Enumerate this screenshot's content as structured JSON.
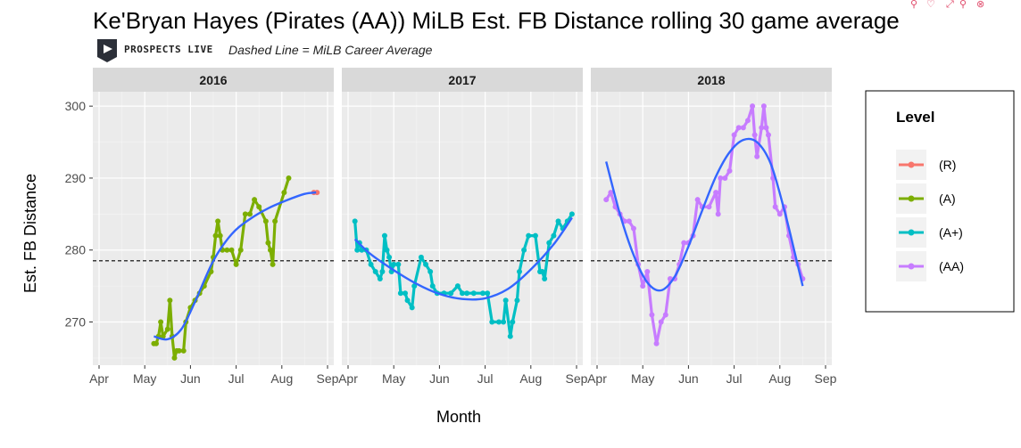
{
  "toolbar": {
    "icons": [
      "search-pin-icon",
      "heart-pin-icon",
      "expand-icon",
      "search-icon",
      "close-search-icon"
    ],
    "color": "#e04a6a"
  },
  "header": {
    "brand_label": "PROSPECTS LIVE",
    "note": "Dashed Line = MiLB Career Average"
  },
  "chart_data": {
    "type": "line",
    "title": "Ke'Bryan Hayes (Pirates (AA)) MiLB Est. FB Distance rolling 30 game average",
    "xlabel": "Month",
    "ylabel": "Est. FB Distance",
    "ylim": [
      264,
      302
    ],
    "yticks": [
      270,
      280,
      290,
      300
    ],
    "xticks": [
      "Apr",
      "May",
      "Jun",
      "Jul",
      "Aug",
      "Sep"
    ],
    "grid": true,
    "career_average": 278.5,
    "legend": {
      "title": "Level",
      "placement": "right",
      "entries": [
        {
          "label": "(R)",
          "color": "#f8766d"
        },
        {
          "label": "(A)",
          "color": "#7cae00"
        },
        {
          "label": "(A+)",
          "color": "#00bfc4"
        },
        {
          "label": "(AA)",
          "color": "#c77cff"
        }
      ]
    },
    "smooth_color": "#3366ff",
    "panels": [
      {
        "label": "2016",
        "series": [
          {
            "name": "(R)",
            "color": "#f8766d",
            "points": [
              [
                4.7,
                288
              ],
              [
                4.77,
                288
              ]
            ]
          },
          {
            "name": "(A)",
            "color": "#7cae00",
            "points": [
              [
                1.2,
                267
              ],
              [
                1.25,
                267
              ],
              [
                1.3,
                268
              ],
              [
                1.35,
                270
              ],
              [
                1.4,
                268
              ],
              [
                1.5,
                269
              ],
              [
                1.55,
                273
              ],
              [
                1.6,
                268
              ],
              [
                1.65,
                265
              ],
              [
                1.7,
                266
              ],
              [
                1.75,
                266
              ],
              [
                1.85,
                266
              ],
              [
                1.9,
                270
              ],
              [
                2.0,
                272
              ],
              [
                2.1,
                273
              ],
              [
                2.2,
                274
              ],
              [
                2.3,
                275
              ],
              [
                2.45,
                277
              ],
              [
                2.5,
                279
              ],
              [
                2.55,
                282
              ],
              [
                2.6,
                284
              ],
              [
                2.65,
                282
              ],
              [
                2.7,
                280
              ],
              [
                2.8,
                280
              ],
              [
                2.9,
                280
              ],
              [
                3.0,
                278
              ],
              [
                3.1,
                280
              ],
              [
                3.2,
                285
              ],
              [
                3.3,
                285
              ],
              [
                3.4,
                287
              ],
              [
                3.5,
                286
              ],
              [
                3.65,
                284
              ],
              [
                3.7,
                281
              ],
              [
                3.75,
                280
              ],
              [
                3.8,
                278
              ],
              [
                3.85,
                284
              ],
              [
                4.05,
                288
              ],
              [
                4.15,
                290
              ]
            ]
          }
        ],
        "smooth": [
          [
            1.2,
            268
          ],
          [
            1.5,
            267.6
          ],
          [
            1.8,
            269
          ],
          [
            2.1,
            272.8
          ],
          [
            2.5,
            278.5
          ],
          [
            2.9,
            282.2
          ],
          [
            3.3,
            284.3
          ],
          [
            3.7,
            285.8
          ],
          [
            4.1,
            286.9
          ],
          [
            4.5,
            287.8
          ],
          [
            4.75,
            288
          ]
        ]
      },
      {
        "label": "2017",
        "series": [
          {
            "name": "(A+)",
            "color": "#00bfc4",
            "points": [
              [
                0.15,
                284
              ],
              [
                0.2,
                280
              ],
              [
                0.25,
                281
              ],
              [
                0.3,
                280
              ],
              [
                0.4,
                280
              ],
              [
                0.5,
                278
              ],
              [
                0.6,
                277
              ],
              [
                0.7,
                276
              ],
              [
                0.75,
                277
              ],
              [
                0.8,
                282
              ],
              [
                0.85,
                280
              ],
              [
                0.9,
                279
              ],
              [
                0.95,
                277
              ],
              [
                1.0,
                278
              ],
              [
                1.1,
                278
              ],
              [
                1.15,
                274
              ],
              [
                1.25,
                274
              ],
              [
                1.3,
                273
              ],
              [
                1.4,
                272
              ],
              [
                1.45,
                275
              ],
              [
                1.6,
                279
              ],
              [
                1.7,
                278
              ],
              [
                1.8,
                277
              ],
              [
                1.85,
                275
              ],
              [
                1.95,
                274
              ],
              [
                2.1,
                274
              ],
              [
                2.25,
                274
              ],
              [
                2.4,
                275
              ],
              [
                2.5,
                274
              ],
              [
                2.6,
                274
              ],
              [
                2.75,
                274
              ],
              [
                2.95,
                274
              ],
              [
                3.05,
                274
              ],
              [
                3.15,
                270
              ],
              [
                3.3,
                270
              ],
              [
                3.4,
                270
              ],
              [
                3.45,
                273
              ],
              [
                3.55,
                268
              ],
              [
                3.6,
                270
              ],
              [
                3.7,
                273
              ],
              [
                3.75,
                277
              ],
              [
                3.85,
                280
              ],
              [
                3.95,
                282
              ],
              [
                4.1,
                282
              ],
              [
                4.2,
                277
              ],
              [
                4.25,
                277
              ],
              [
                4.3,
                276
              ],
              [
                4.4,
                281
              ],
              [
                4.5,
                282
              ],
              [
                4.6,
                284
              ],
              [
                4.7,
                283
              ],
              [
                4.8,
                284
              ],
              [
                4.9,
                285
              ]
            ]
          }
        ],
        "smooth": [
          [
            0.15,
            281.5
          ],
          [
            0.5,
            279.4
          ],
          [
            1.0,
            277.2
          ],
          [
            1.5,
            275.3
          ],
          [
            2.0,
            273.9
          ],
          [
            2.5,
            273.2
          ],
          [
            3.0,
            273.3
          ],
          [
            3.5,
            274.6
          ],
          [
            4.0,
            277.3
          ],
          [
            4.5,
            280.8
          ],
          [
            4.9,
            284.5
          ]
        ]
      },
      {
        "label": "2018",
        "series": [
          {
            "name": "(AA)",
            "color": "#c77cff",
            "points": [
              [
                0.2,
                287
              ],
              [
                0.3,
                288
              ],
              [
                0.4,
                286
              ],
              [
                0.5,
                285
              ],
              [
                0.6,
                284
              ],
              [
                0.7,
                284
              ],
              [
                0.8,
                283
              ],
              [
                0.9,
                278
              ],
              [
                1.0,
                275
              ],
              [
                1.1,
                277
              ],
              [
                1.2,
                271
              ],
              [
                1.3,
                267
              ],
              [
                1.4,
                270
              ],
              [
                1.5,
                271
              ],
              [
                1.6,
                276
              ],
              [
                1.7,
                276
              ],
              [
                1.8,
                278
              ],
              [
                1.9,
                281
              ],
              [
                2.0,
                281
              ],
              [
                2.1,
                282
              ],
              [
                2.2,
                287
              ],
              [
                2.3,
                286
              ],
              [
                2.45,
                286
              ],
              [
                2.6,
                288
              ],
              [
                2.65,
                285
              ],
              [
                2.7,
                290
              ],
              [
                2.8,
                290
              ],
              [
                2.9,
                291
              ],
              [
                3.0,
                296
              ],
              [
                3.1,
                297
              ],
              [
                3.2,
                297
              ],
              [
                3.3,
                298
              ],
              [
                3.4,
                300
              ],
              [
                3.45,
                296
              ],
              [
                3.5,
                293
              ],
              [
                3.6,
                297
              ],
              [
                3.65,
                300
              ],
              [
                3.7,
                297
              ],
              [
                3.75,
                296
              ],
              [
                3.85,
                290
              ],
              [
                3.9,
                286
              ],
              [
                4.0,
                285
              ],
              [
                4.1,
                286
              ],
              [
                4.2,
                282
              ],
              [
                4.3,
                279
              ],
              [
                4.4,
                278
              ],
              [
                4.5,
                276
              ]
            ]
          }
        ],
        "smooth": [
          [
            0.2,
            292.3
          ],
          [
            0.5,
            285
          ],
          [
            0.8,
            279.3
          ],
          [
            1.1,
            275.5
          ],
          [
            1.4,
            274.4
          ],
          [
            1.7,
            276.3
          ],
          [
            2.0,
            280.5
          ],
          [
            2.3,
            285.5
          ],
          [
            2.6,
            290.2
          ],
          [
            2.9,
            293.6
          ],
          [
            3.2,
            295.3
          ],
          [
            3.5,
            295
          ],
          [
            3.8,
            292
          ],
          [
            4.1,
            285.5
          ],
          [
            4.35,
            279
          ],
          [
            4.5,
            275
          ]
        ]
      }
    ]
  }
}
